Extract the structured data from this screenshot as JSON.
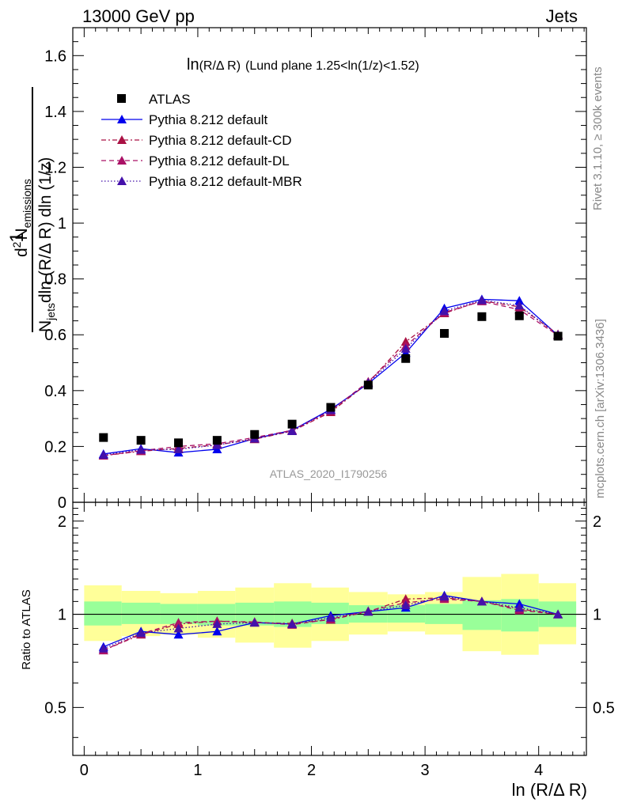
{
  "header": {
    "left": "13000 GeV pp",
    "right": "Jets",
    "title_prefix": "ln",
    "title_sub": "(R/Δ R)",
    "title_rest": "(Lund plane 1.25<ln(1/z)<1.52)",
    "watermark": "ATLAS_2020_I1790256",
    "side_rivet": "Rivet 3.1.10, ≥ 300k events",
    "side_mcplots": "mcplots.cern.ch [arXiv:1306.3436]"
  },
  "ylabel_main": {
    "one": "1",
    "den_n": "N",
    "den_sub": "jets",
    "den_rest": "dln (R/Δ R) dln (1/z)",
    "num_d": "d",
    "num_sup": "2",
    "num_n": "N",
    "num_sub": "emissions"
  },
  "chart_data": [
    {
      "type": "scatter",
      "id": "main",
      "xlim": [
        -0.1,
        4.42
      ],
      "ylim": [
        0,
        1.7
      ],
      "yticks": [
        0,
        0.2,
        0.4,
        0.6,
        0.8,
        1,
        1.2,
        1.4,
        1.6
      ],
      "yticklabels": [
        "0",
        "0.2",
        "0.4",
        "0.6",
        "0.8",
        "1",
        "1.2",
        "1.4",
        "1.6"
      ],
      "x": [
        0.17,
        0.5,
        0.83,
        1.17,
        1.5,
        1.83,
        2.17,
        2.5,
        2.83,
        3.17,
        3.5,
        3.83,
        4.17
      ],
      "series": [
        {
          "name": "ATLAS",
          "color": "#000000",
          "style": "data",
          "values": [
            0.232,
            0.222,
            0.213,
            0.222,
            0.243,
            0.28,
            0.34,
            0.42,
            0.515,
            0.605,
            0.665,
            0.668,
            0.595
          ]
        },
        {
          "name": "Pythia 8.212 default",
          "color": "#0000ee",
          "style": "solid",
          "values": [
            0.173,
            0.192,
            0.178,
            0.19,
            0.228,
            0.258,
            0.333,
            0.425,
            0.535,
            0.695,
            0.727,
            0.722,
            0.598
          ]
        },
        {
          "name": "Pythia 8.212 default-CD",
          "color": "#aa1144",
          "style": "dashdot",
          "values": [
            0.167,
            0.183,
            0.193,
            0.206,
            0.226,
            0.255,
            0.323,
            0.428,
            0.575,
            0.677,
            0.722,
            0.7,
            0.602
          ]
        },
        {
          "name": "Pythia 8.212 default-DL",
          "color": "#aa1166",
          "style": "dashed",
          "values": [
            0.167,
            0.185,
            0.2,
            0.21,
            0.232,
            0.258,
            0.328,
            0.432,
            0.56,
            0.68,
            0.72,
            0.69,
            0.598
          ]
        },
        {
          "name": "Pythia 8.212 default-MBR",
          "color": "#4411aa",
          "style": "dotted",
          "values": [
            0.17,
            0.188,
            0.19,
            0.205,
            0.228,
            0.255,
            0.33,
            0.428,
            0.55,
            0.685,
            0.724,
            0.705,
            0.6
          ]
        }
      ]
    },
    {
      "type": "band",
      "id": "ratio",
      "ylabel": "Ratio to ATLAS",
      "xlabel": "ln (R/Δ R)",
      "xlim": [
        -0.1,
        4.42
      ],
      "ylim": [
        0.35,
        2.3
      ],
      "yticks": [
        0.5,
        1,
        2
      ],
      "yticklabels": [
        "0.5",
        "1",
        "2"
      ],
      "xticks": [
        0,
        1,
        2,
        3,
        4
      ],
      "xticklabels": [
        "0",
        "1",
        "2",
        "3",
        "4"
      ],
      "bin_edges": [
        0,
        0.33,
        0.67,
        1,
        1.33,
        1.67,
        2,
        2.33,
        2.67,
        3,
        3.33,
        3.67,
        4,
        4.33
      ],
      "green_band": [
        [
          0.92,
          1.1
        ],
        [
          0.93,
          1.09
        ],
        [
          0.93,
          1.08
        ],
        [
          0.92,
          1.08
        ],
        [
          0.92,
          1.09
        ],
        [
          0.91,
          1.1
        ],
        [
          0.93,
          1.09
        ],
        [
          0.94,
          1.07
        ],
        [
          0.94,
          1.07
        ],
        [
          0.93,
          1.08
        ],
        [
          0.89,
          1.11
        ],
        [
          0.88,
          1.12
        ],
        [
          0.91,
          1.1
        ]
      ],
      "yellow_band": [
        [
          0.82,
          1.24
        ],
        [
          0.85,
          1.19
        ],
        [
          0.86,
          1.17
        ],
        [
          0.84,
          1.19
        ],
        [
          0.81,
          1.22
        ],
        [
          0.78,
          1.26
        ],
        [
          0.82,
          1.22
        ],
        [
          0.86,
          1.18
        ],
        [
          0.88,
          1.16
        ],
        [
          0.86,
          1.18
        ],
        [
          0.76,
          1.32
        ],
        [
          0.74,
          1.35
        ],
        [
          0.8,
          1.26
        ]
      ],
      "x": [
        0.17,
        0.5,
        0.83,
        1.17,
        1.5,
        1.83,
        2.17,
        2.5,
        2.83,
        3.17,
        3.5,
        3.83,
        4.17
      ],
      "series": [
        {
          "name": "Pythia 8.212 default",
          "color": "#0000ee",
          "style": "solid",
          "values": [
            0.785,
            0.88,
            0.86,
            0.88,
            0.94,
            0.93,
            0.99,
            1.02,
            1.05,
            1.15,
            1.1,
            1.08,
            1.0
          ]
        },
        {
          "name": "Pythia 8.212 default-CD",
          "color": "#aa1144",
          "style": "dashdot",
          "values": [
            0.765,
            0.86,
            0.93,
            0.95,
            0.94,
            0.935,
            0.96,
            1.02,
            1.12,
            1.13,
            1.1,
            1.04,
            1.0
          ]
        },
        {
          "name": "Pythia 8.212 default-DL",
          "color": "#aa1166",
          "style": "dashed",
          "values": [
            0.765,
            0.865,
            0.94,
            0.95,
            0.945,
            0.925,
            0.965,
            1.025,
            1.09,
            1.12,
            1.1,
            1.03,
            1.0
          ]
        },
        {
          "name": "Pythia 8.212 default-MBR",
          "color": "#4411aa",
          "style": "dotted",
          "values": [
            0.775,
            0.87,
            0.9,
            0.93,
            0.94,
            0.93,
            0.975,
            1.02,
            1.07,
            1.14,
            1.1,
            1.05,
            1.0
          ]
        }
      ]
    }
  ]
}
